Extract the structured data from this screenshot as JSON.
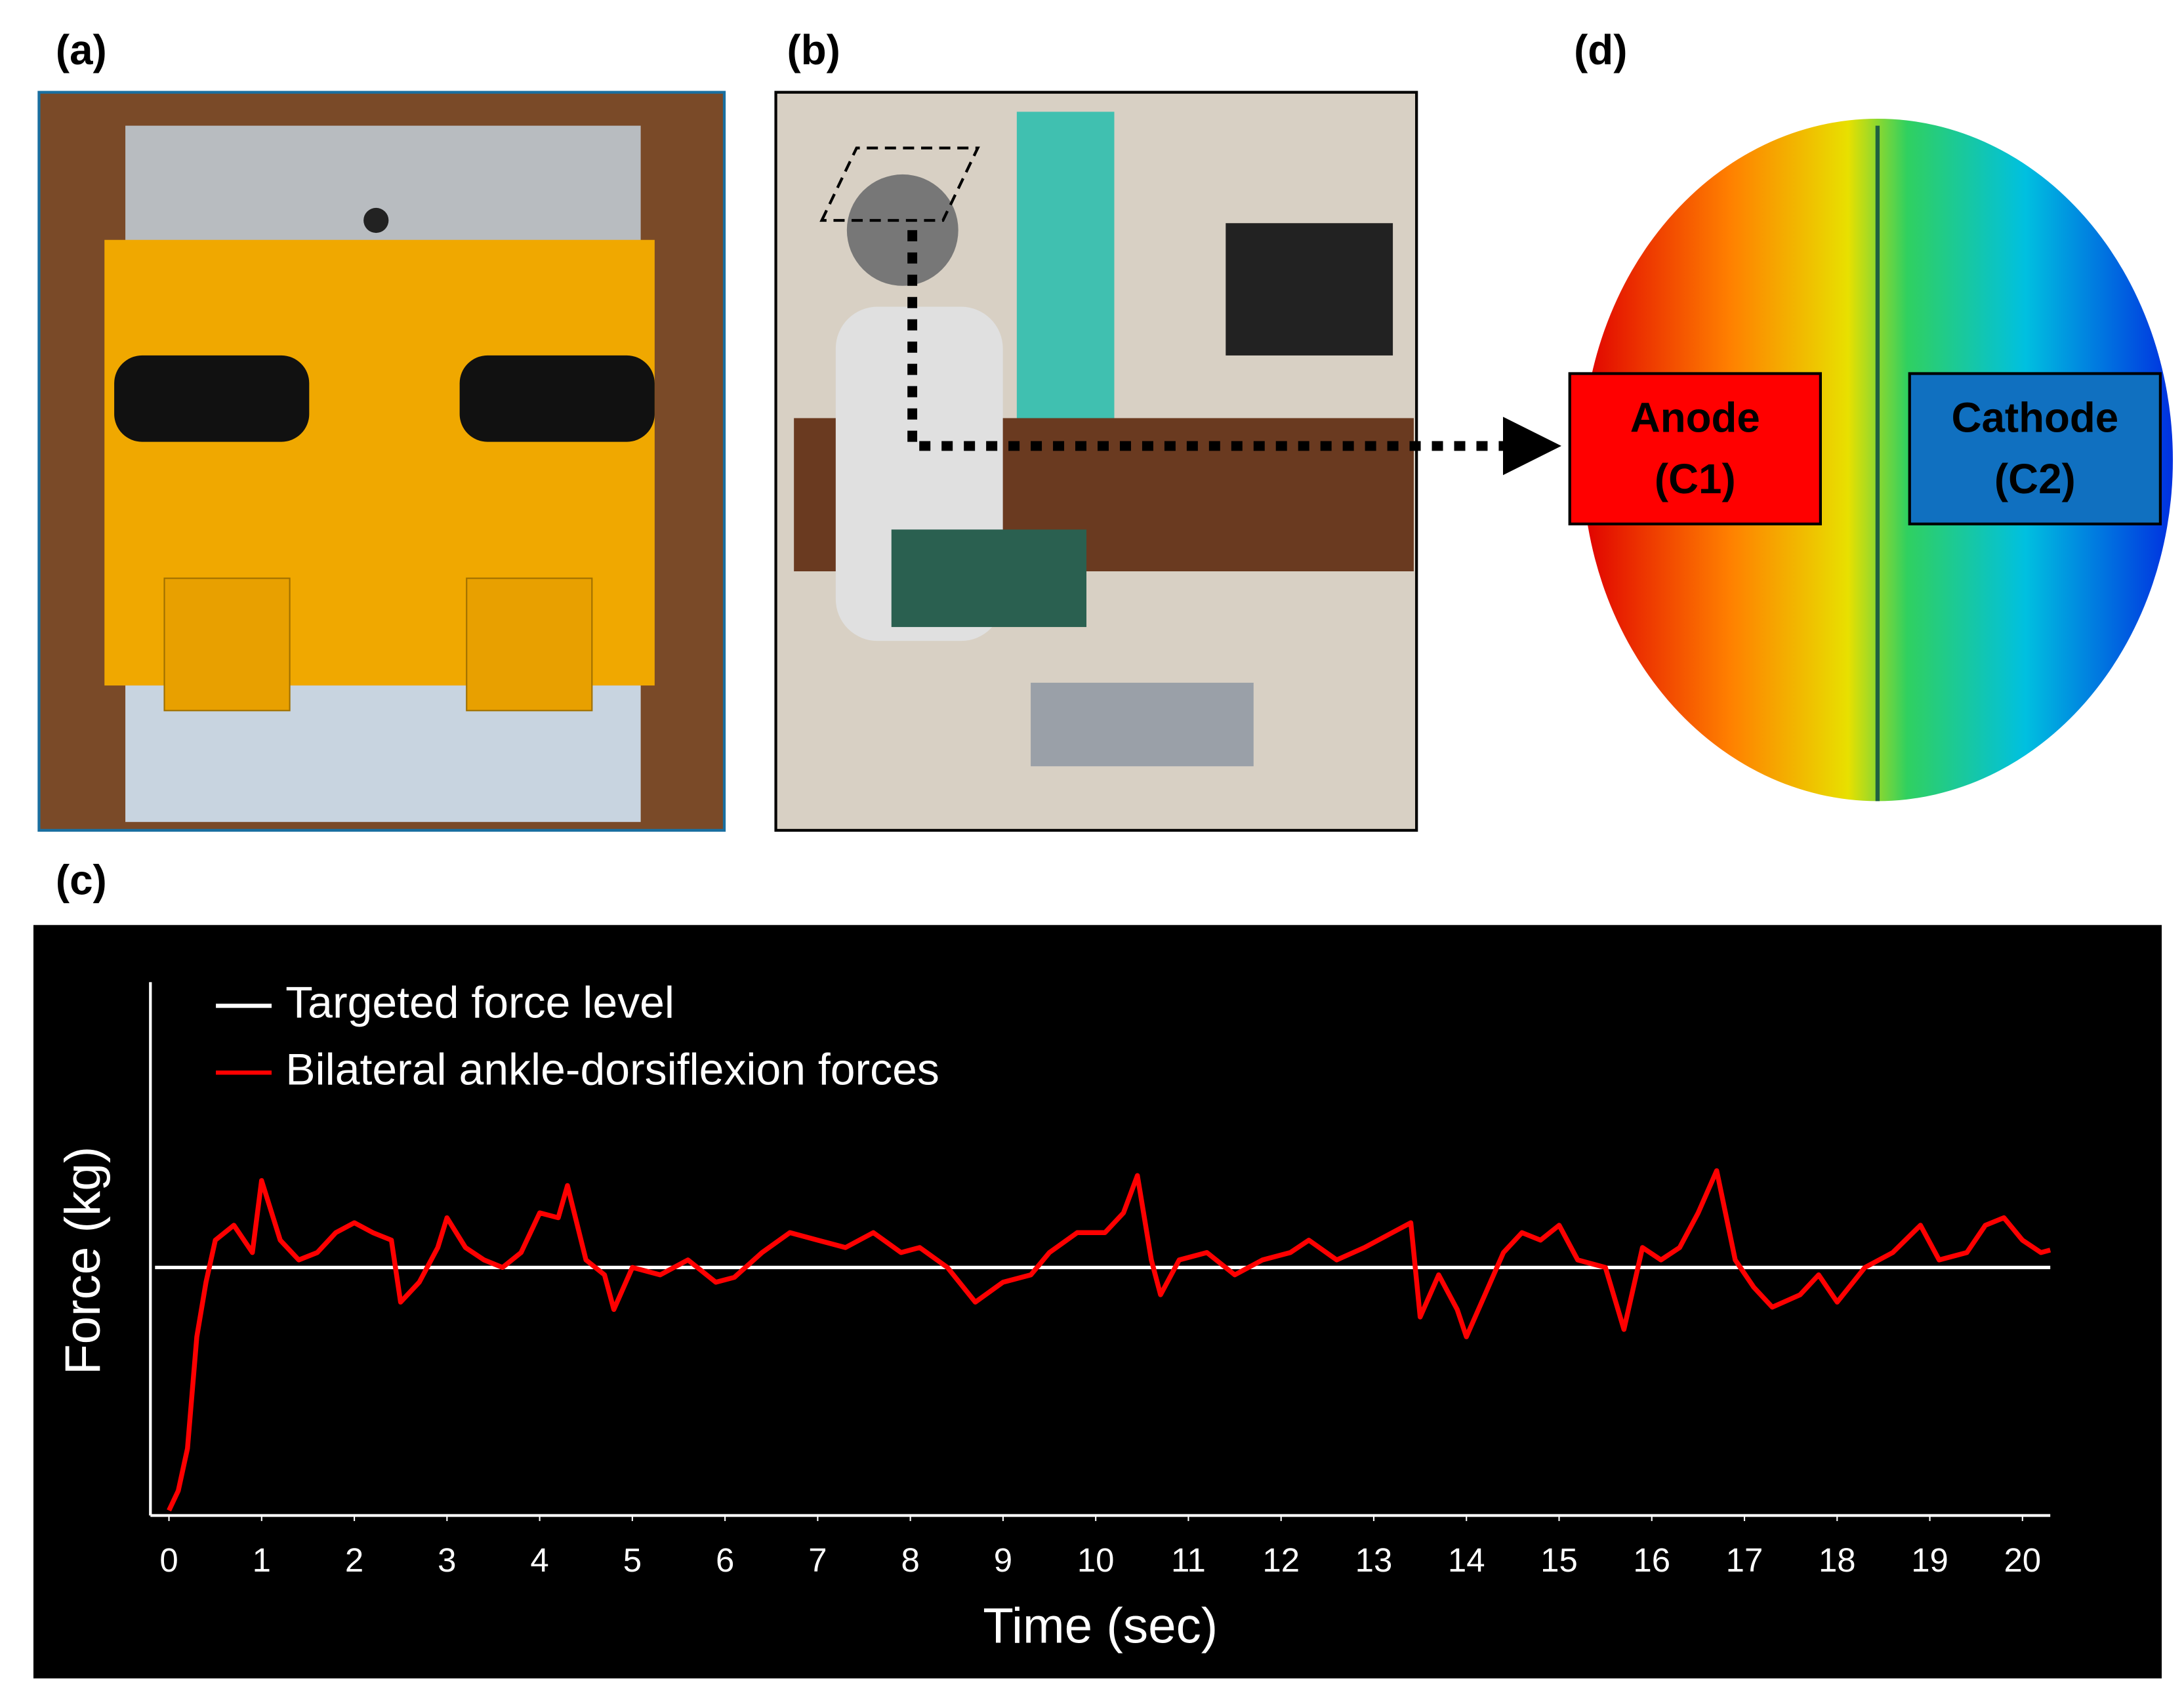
{
  "panels": {
    "a": "(a)",
    "b": "(b)",
    "c": "(c)",
    "d": "(d)",
    "anode": [
      "Anode",
      "(C1)"
    ],
    "cathode": [
      "Cathode",
      "(C2)"
    ]
  },
  "chart_data": {
    "type": "line",
    "xlabel": "Time (sec)",
    "ylabel": "Force (kg)",
    "xlim": [
      -0.2,
      20.3
    ],
    "xticks": [
      0,
      1,
      2,
      3,
      4,
      5,
      6,
      7,
      8,
      9,
      10,
      11,
      12,
      13,
      14,
      15,
      16,
      17,
      18,
      19,
      20
    ],
    "ylim": [
      0,
      2.15
    ],
    "series": [
      {
        "name": "Targeted force level",
        "color": "#ffffff",
        "x": [
          -0.15,
          20.3
        ],
        "values": [
          1,
          1
        ]
      },
      {
        "name": "Bilateral ankle-dorsiflexion forces",
        "color": "#ff0000",
        "x": [
          0,
          0.1,
          0.2,
          0.3,
          0.4,
          0.5,
          0.7,
          0.9,
          1.0,
          1.2,
          1.4,
          1.6,
          1.8,
          2.0,
          2.2,
          2.4,
          2.5,
          2.7,
          2.9,
          3.0,
          3.2,
          3.4,
          3.6,
          3.8,
          4.0,
          4.2,
          4.3,
          4.5,
          4.7,
          4.8,
          5.0,
          5.3,
          5.6,
          5.9,
          6.1,
          6.4,
          6.7,
          7.0,
          7.3,
          7.6,
          7.9,
          8.1,
          8.4,
          8.7,
          9.0,
          9.3,
          9.5,
          9.8,
          10.1,
          10.3,
          10.45,
          10.6,
          10.7,
          10.9,
          11.2,
          11.5,
          11.8,
          12.1,
          12.3,
          12.6,
          12.9,
          13.2,
          13.4,
          13.5,
          13.7,
          13.9,
          14.0,
          14.2,
          14.4,
          14.6,
          14.8,
          15.0,
          15.2,
          15.5,
          15.7,
          15.9,
          16.1,
          16.3,
          16.5,
          16.7,
          16.9,
          17.1,
          17.3,
          17.6,
          17.8,
          18.0,
          18.3,
          18.6,
          18.9,
          19.1,
          19.4,
          19.6,
          19.8,
          20.0,
          20.2,
          20.3
        ],
        "values": [
          0.02,
          0.1,
          0.27,
          0.72,
          0.94,
          1.11,
          1.17,
          1.06,
          1.35,
          1.11,
          1.03,
          1.06,
          1.14,
          1.18,
          1.14,
          1.11,
          0.86,
          0.94,
          1.08,
          1.2,
          1.08,
          1.03,
          1.0,
          1.06,
          1.22,
          1.2,
          1.33,
          1.03,
          0.97,
          0.83,
          1.0,
          0.97,
          1.03,
          0.94,
          0.96,
          1.06,
          1.14,
          1.11,
          1.08,
          1.14,
          1.06,
          1.08,
          1.0,
          0.86,
          0.94,
          0.97,
          1.06,
          1.14,
          1.14,
          1.22,
          1.37,
          1.03,
          0.89,
          1.03,
          1.06,
          0.97,
          1.03,
          1.06,
          1.11,
          1.03,
          1.08,
          1.14,
          1.18,
          0.8,
          0.97,
          0.83,
          0.72,
          0.89,
          1.06,
          1.14,
          1.11,
          1.17,
          1.03,
          1.0,
          0.75,
          1.08,
          1.03,
          1.08,
          1.22,
          1.39,
          1.03,
          0.92,
          0.84,
          0.89,
          0.97,
          0.86,
          1.0,
          1.06,
          1.17,
          1.03,
          1.06,
          1.17,
          1.2,
          1.11,
          1.06,
          1.07
        ]
      }
    ]
  }
}
